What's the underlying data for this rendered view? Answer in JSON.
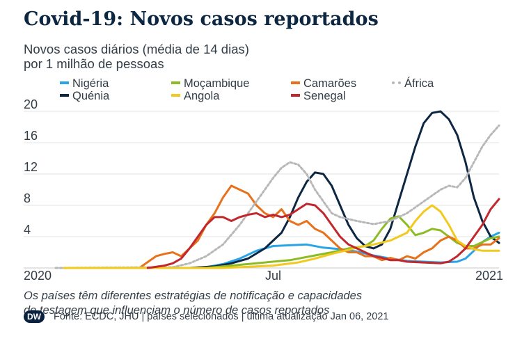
{
  "title": "Covid-19: Novos casos reportados",
  "subtitle_line1": "Novos casos diários (média de 14 dias)",
  "subtitle_line2": "por 1 milhão de pessoas",
  "note_line1": "Os países têm diferentes estratégias de notificação e capacidades",
  "note_line2": "de testagem que influenciam o número de casos reportados",
  "footer": {
    "logo": "DW",
    "source": "Fonte: ECDC, JHU | países selecionados | última atualização Jan 06, 2021"
  },
  "colors": {
    "nigeria": "#2aa4e8",
    "quenia": "#0d2743",
    "mocambique": "#8dbb26",
    "angola": "#f2c91e",
    "camaroes": "#e8711c",
    "senegal": "#c0282d",
    "africa": "#b8b8b8",
    "grid": "#e3e3e3"
  },
  "chart_data": {
    "type": "line",
    "ylim": [
      0,
      20
    ],
    "yticks": [
      4,
      8,
      12,
      16,
      20
    ],
    "x_domain": [
      0,
      53
    ],
    "x_unit": "weeks of 2020",
    "xticks": [
      {
        "x": 0,
        "label": "2020"
      },
      {
        "x": 26,
        "label": "Jul"
      },
      {
        "x": 53,
        "label": "2021"
      }
    ],
    "series": [
      {
        "key": "nigeria",
        "name": "Nigéria",
        "color": "#2aa4e8",
        "points": [
          [
            1,
            0
          ],
          [
            16,
            0
          ],
          [
            18,
            0.1
          ],
          [
            20,
            0.5
          ],
          [
            22,
            1.2
          ],
          [
            24,
            2.2
          ],
          [
            26,
            2.8
          ],
          [
            28,
            2.9
          ],
          [
            30,
            3.0
          ],
          [
            32,
            2.6
          ],
          [
            34,
            2.4
          ],
          [
            36,
            2.1
          ],
          [
            38,
            1.6
          ],
          [
            40,
            1.2
          ],
          [
            42,
            0.9
          ],
          [
            44,
            0.8
          ],
          [
            46,
            0.7
          ],
          [
            48,
            0.8
          ],
          [
            49,
            1.2
          ],
          [
            50,
            2.2
          ],
          [
            51,
            3.3
          ],
          [
            52,
            4.0
          ],
          [
            53,
            4.5
          ]
        ]
      },
      {
        "key": "quenia",
        "name": "Quénia",
        "color": "#0d2743",
        "points": [
          [
            1,
            0
          ],
          [
            16,
            0
          ],
          [
            19,
            0.2
          ],
          [
            21,
            0.6
          ],
          [
            23,
            1.2
          ],
          [
            25,
            2.5
          ],
          [
            27,
            4.5
          ],
          [
            28,
            6.5
          ],
          [
            29,
            9.0
          ],
          [
            30,
            11.0
          ],
          [
            31,
            12.2
          ],
          [
            32,
            12.0
          ],
          [
            33,
            10.5
          ],
          [
            34,
            8.0
          ],
          [
            35,
            5.5
          ],
          [
            36,
            3.8
          ],
          [
            37,
            2.8
          ],
          [
            38,
            2.5
          ],
          [
            39,
            3.0
          ],
          [
            40,
            5.0
          ],
          [
            41,
            8.5
          ],
          [
            42,
            12.0
          ],
          [
            43,
            15.5
          ],
          [
            44,
            18.5
          ],
          [
            45,
            19.8
          ],
          [
            46,
            20.0
          ],
          [
            47,
            19.0
          ],
          [
            48,
            17.0
          ],
          [
            49,
            13.5
          ],
          [
            50,
            9.0
          ],
          [
            51,
            6.0
          ],
          [
            52,
            4.0
          ],
          [
            53,
            3.2
          ]
        ]
      },
      {
        "key": "mocambique",
        "name": "Moçambique",
        "color": "#8dbb26",
        "points": [
          [
            1,
            0
          ],
          [
            18,
            0
          ],
          [
            20,
            0.2
          ],
          [
            22,
            0.4
          ],
          [
            25,
            0.7
          ],
          [
            28,
            1.0
          ],
          [
            31,
            1.6
          ],
          [
            33,
            2.0
          ],
          [
            35,
            2.5
          ],
          [
            37,
            2.8
          ],
          [
            38,
            3.5
          ],
          [
            39,
            5.0
          ],
          [
            40,
            6.3
          ],
          [
            41,
            6.6
          ],
          [
            42,
            5.5
          ],
          [
            43,
            4.2
          ],
          [
            44,
            4.5
          ],
          [
            45,
            5.0
          ],
          [
            46,
            4.8
          ],
          [
            47,
            4.0
          ],
          [
            48,
            3.2
          ],
          [
            49,
            2.8
          ],
          [
            50,
            2.8
          ],
          [
            51,
            3.3
          ],
          [
            52,
            3.8
          ],
          [
            53,
            4.0
          ]
        ]
      },
      {
        "key": "camaroes",
        "name": "Camarões",
        "color": "#e8711c",
        "points": [
          [
            10,
            0
          ],
          [
            12,
            1.5
          ],
          [
            13,
            1.8
          ],
          [
            14,
            2.0
          ],
          [
            15,
            1.5
          ],
          [
            16,
            2.5
          ],
          [
            17,
            3.5
          ],
          [
            18,
            5.5
          ],
          [
            19,
            7.0
          ],
          [
            20,
            9.0
          ],
          [
            21,
            10.5
          ],
          [
            22,
            10.0
          ],
          [
            23,
            9.5
          ],
          [
            24,
            8.0
          ],
          [
            25,
            7.0
          ],
          [
            26,
            6.5
          ],
          [
            27,
            7.5
          ],
          [
            28,
            6.0
          ],
          [
            29,
            5.5
          ],
          [
            30,
            6.0
          ],
          [
            31,
            5.0
          ],
          [
            32,
            4.5
          ],
          [
            33,
            3.5
          ],
          [
            34,
            2.5
          ],
          [
            35,
            2.0
          ],
          [
            36,
            2.0
          ],
          [
            37,
            1.5
          ],
          [
            38,
            1.5
          ],
          [
            39,
            1.0
          ],
          [
            40,
            1.3
          ],
          [
            41,
            1.0
          ],
          [
            42,
            1.5
          ],
          [
            43,
            1.2
          ],
          [
            44,
            2.0
          ],
          [
            45,
            2.5
          ],
          [
            46,
            3.5
          ],
          [
            47,
            4.0
          ],
          [
            48,
            3.5
          ],
          [
            49,
            2.5
          ],
          [
            50,
            2.5
          ],
          [
            51,
            3.0
          ],
          [
            52,
            3.0
          ],
          [
            53,
            3.8
          ]
        ]
      },
      {
        "key": "africa",
        "name": "África",
        "color": "#b8b8b8",
        "dotted": true,
        "points": [
          [
            0,
            0
          ],
          [
            14,
            0.1
          ],
          [
            16,
            0.6
          ],
          [
            18,
            1.5
          ],
          [
            20,
            3.0
          ],
          [
            22,
            5.5
          ],
          [
            24,
            8.5
          ],
          [
            26,
            11.5
          ],
          [
            27,
            12.8
          ],
          [
            28,
            13.5
          ],
          [
            29,
            13.2
          ],
          [
            30,
            12.0
          ],
          [
            31,
            10.0
          ],
          [
            32,
            8.5
          ],
          [
            33,
            7.0
          ],
          [
            34,
            6.5
          ],
          [
            36,
            6.0
          ],
          [
            38,
            5.6
          ],
          [
            40,
            6.0
          ],
          [
            42,
            7.0
          ],
          [
            44,
            8.5
          ],
          [
            46,
            10.0
          ],
          [
            47,
            10.5
          ],
          [
            48,
            10.3
          ],
          [
            49,
            11.5
          ],
          [
            50,
            13.5
          ],
          [
            51,
            15.5
          ],
          [
            52,
            17.0
          ],
          [
            53,
            18.2
          ]
        ]
      },
      {
        "key": "angola",
        "name": "Angola",
        "color": "#f2c91e",
        "points": [
          [
            1,
            0
          ],
          [
            20,
            0
          ],
          [
            22,
            0.1
          ],
          [
            26,
            0.3
          ],
          [
            29,
            0.7
          ],
          [
            31,
            1.2
          ],
          [
            33,
            1.8
          ],
          [
            35,
            2.3
          ],
          [
            36,
            2.6
          ],
          [
            38,
            3.0
          ],
          [
            40,
            3.5
          ],
          [
            42,
            4.5
          ],
          [
            43,
            6.0
          ],
          [
            44,
            7.2
          ],
          [
            45,
            8.0
          ],
          [
            46,
            7.2
          ],
          [
            47,
            5.5
          ],
          [
            48,
            3.5
          ],
          [
            49,
            2.8
          ],
          [
            50,
            2.4
          ],
          [
            51,
            2.2
          ],
          [
            52,
            2.2
          ],
          [
            53,
            2.2
          ]
        ]
      },
      {
        "key": "senegal",
        "name": "Senegal",
        "color": "#c0282d",
        "points": [
          [
            11,
            0
          ],
          [
            13,
            0.3
          ],
          [
            14,
            0.6
          ],
          [
            15,
            1.2
          ],
          [
            16,
            2.5
          ],
          [
            17,
            4.0
          ],
          [
            18,
            5.5
          ],
          [
            19,
            6.5
          ],
          [
            20,
            6.5
          ],
          [
            21,
            6.0
          ],
          [
            22,
            6.5
          ],
          [
            23,
            6.8
          ],
          [
            24,
            7.0
          ],
          [
            25,
            6.5
          ],
          [
            26,
            6.8
          ],
          [
            27,
            6.5
          ],
          [
            28,
            6.8
          ],
          [
            29,
            7.5
          ],
          [
            30,
            8.2
          ],
          [
            31,
            8.0
          ],
          [
            32,
            7.0
          ],
          [
            33,
            5.5
          ],
          [
            34,
            4.0
          ],
          [
            35,
            3.0
          ],
          [
            36,
            2.5
          ],
          [
            37,
            2.0
          ],
          [
            38,
            1.5
          ],
          [
            39,
            1.3
          ],
          [
            40,
            1.0
          ],
          [
            41,
            1.0
          ],
          [
            42,
            0.8
          ],
          [
            44,
            0.7
          ],
          [
            46,
            0.6
          ],
          [
            47,
            0.8
          ],
          [
            48,
            1.5
          ],
          [
            49,
            2.5
          ],
          [
            50,
            4.0
          ],
          [
            51,
            5.5
          ],
          [
            52,
            7.5
          ],
          [
            53,
            8.8
          ]
        ]
      }
    ],
    "legend": [
      [
        "nigeria",
        "Nigéria"
      ],
      [
        "mocambique",
        "Moçambique"
      ],
      [
        "camaroes",
        "Camarões"
      ],
      [
        "africa",
        "África"
      ],
      [
        "quenia",
        "Quénia"
      ],
      [
        "angola",
        "Angola"
      ],
      [
        "senegal",
        "Senegal"
      ]
    ]
  }
}
